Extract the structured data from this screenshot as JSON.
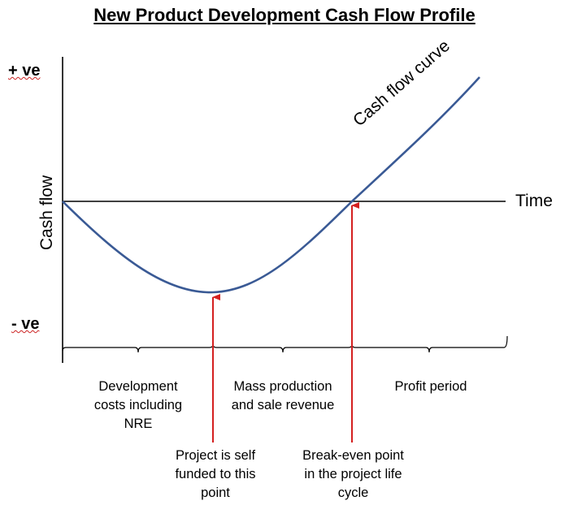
{
  "title": "New Product Development Cash Flow Profile",
  "axes": {
    "positive_label": "+ ve",
    "negative_label": "- ve",
    "y_label": "Cash flow",
    "x_label": "Time"
  },
  "curve_label": "Cash flow curve",
  "phases": [
    {
      "lines": [
        "Development",
        "costs including",
        "NRE"
      ]
    },
    {
      "lines": [
        "Mass production",
        "and sale revenue"
      ]
    },
    {
      "lines": [
        "Profit period"
      ]
    }
  ],
  "annotations": [
    {
      "lines": [
        "Project is self",
        "funded to this",
        "point"
      ]
    },
    {
      "lines": [
        "Break-even point",
        "in the project life",
        "cycle"
      ]
    }
  ],
  "colors": {
    "curve": "#3a5a95",
    "arrow": "#d42020",
    "axis": "#000000"
  }
}
